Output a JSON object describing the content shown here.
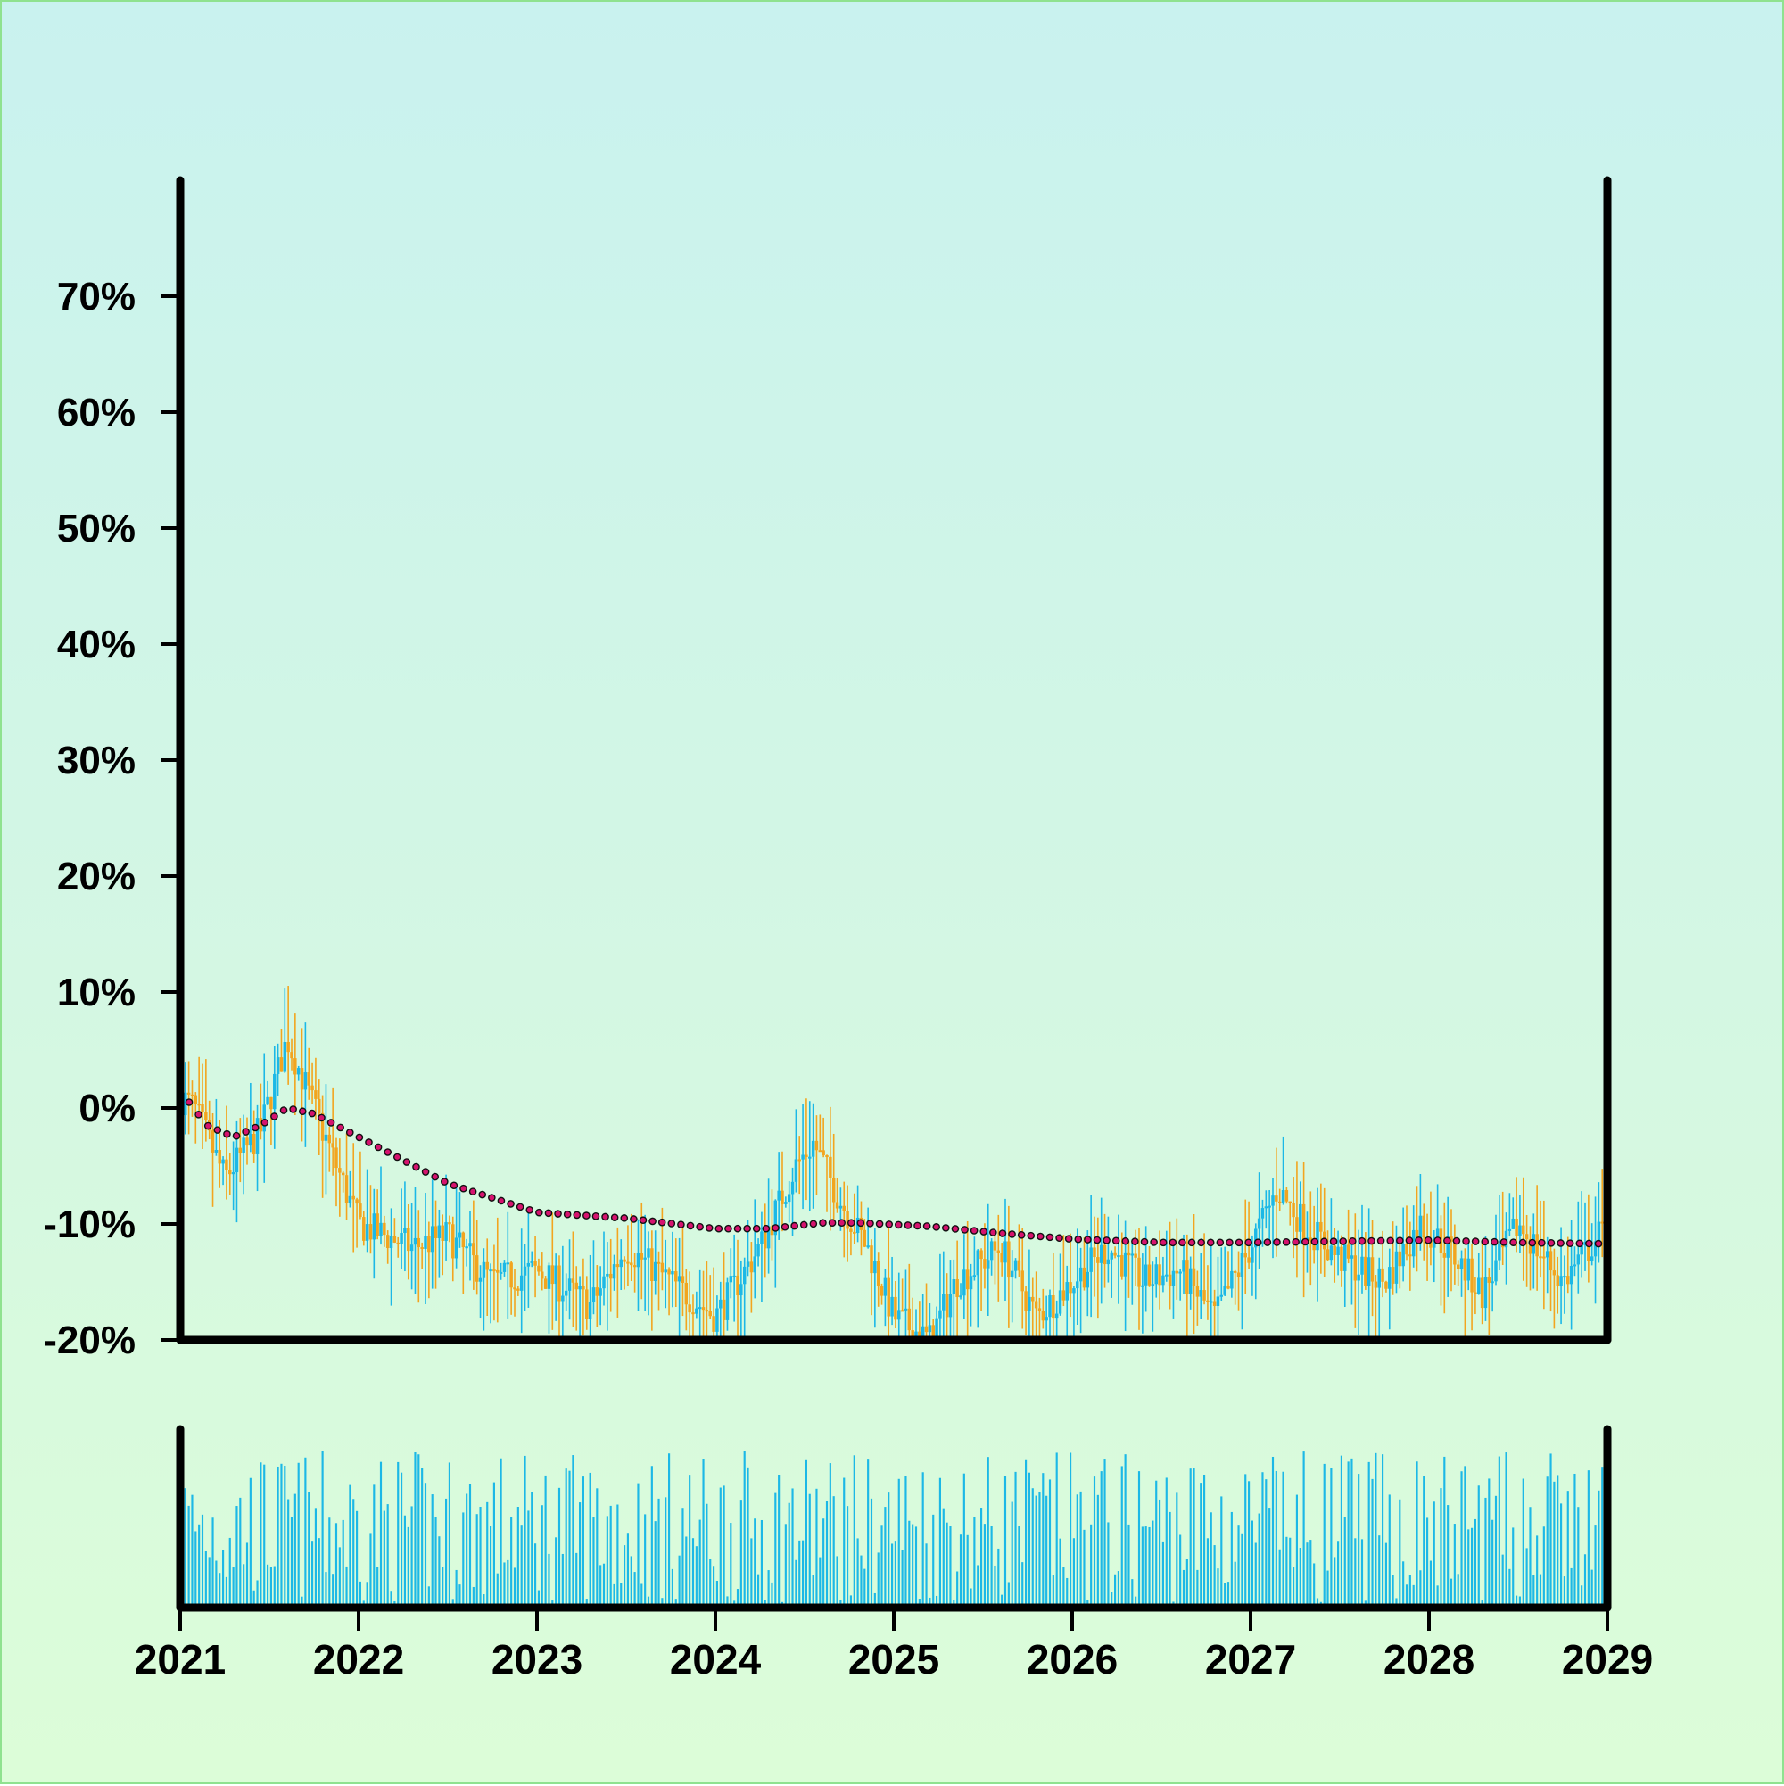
{
  "colors": {
    "up": "#1cb8e6",
    "down": "#f2a51f",
    "trend": "#d6136e",
    "trend_edge": "#111111",
    "volume": "#1cb8e6",
    "axis": "#000000"
  },
  "chart_data": {
    "type": "candlestick",
    "title": "",
    "xlabel": "",
    "ylabel": "",
    "x_ticks": [
      "2021",
      "2022",
      "2023",
      "2024",
      "2025",
      "2026",
      "2027",
      "2028",
      "2029"
    ],
    "y_ticks": [
      "-20%",
      "-10%",
      "0%",
      "10%",
      "20%",
      "30%",
      "40%",
      "50%",
      "60%",
      "70%"
    ],
    "x_range": [
      2021,
      2029
    ],
    "y_range": [
      -20,
      80
    ],
    "grid": false,
    "legend": "none",
    "price_series_anchors": {
      "x": [
        2021.0,
        2021.08,
        2021.25,
        2021.45,
        2021.6,
        2021.7,
        2021.85,
        2022.0,
        2022.3,
        2022.5,
        2022.75,
        2023.0,
        2023.3,
        2023.5,
        2023.75,
        2024.0,
        2024.25,
        2024.45,
        2024.55,
        2024.7,
        2024.85,
        2025.0,
        2025.2,
        2025.35,
        2025.6,
        2025.8,
        2026.0,
        2026.2,
        2026.4,
        2026.6,
        2026.8,
        2027.0,
        2027.15,
        2027.3,
        2027.5,
        2027.75,
        2027.95,
        2028.1,
        2028.3,
        2028.5,
        2028.75,
        2028.95
      ],
      "y": [
        1,
        0,
        -6,
        -2,
        6,
        2,
        -4,
        -10,
        -12,
        -11,
        -15,
        -14,
        -17,
        -12,
        -15,
        -18,
        -12,
        -5,
        -3,
        -8,
        -12,
        -18,
        -20,
        -15,
        -12,
        -18,
        -15,
        -12,
        -15,
        -14,
        -18,
        -12,
        -7,
        -10,
        -13,
        -15,
        -10,
        -12,
        -16,
        -10,
        -15,
        -11
      ]
    },
    "trend_line_anchors": {
      "x": [
        2021.0,
        2021.15,
        2021.3,
        2021.45,
        2021.6,
        2021.75,
        2022.0,
        2022.5,
        2023.0,
        2023.5,
        2024.0,
        2024.3,
        2024.6,
        2024.8,
        2025.2,
        2025.6,
        2026.0,
        2026.5,
        2027.0,
        2027.5,
        2028.0,
        2028.5,
        2028.95
      ],
      "y": [
        1.5,
        -1.5,
        -2.5,
        -1.5,
        0,
        -0.5,
        -2.5,
        -6.5,
        -9,
        -9.5,
        -10.4,
        -10.4,
        -9.9,
        -9.9,
        -10.2,
        -10.8,
        -11.3,
        -11.6,
        -11.6,
        -11.5,
        -11.4,
        -11.6,
        -11.7
      ]
    },
    "volume_bars": "one bar per week; bar height proportional to relative trading volume (no axis scale printed)"
  }
}
